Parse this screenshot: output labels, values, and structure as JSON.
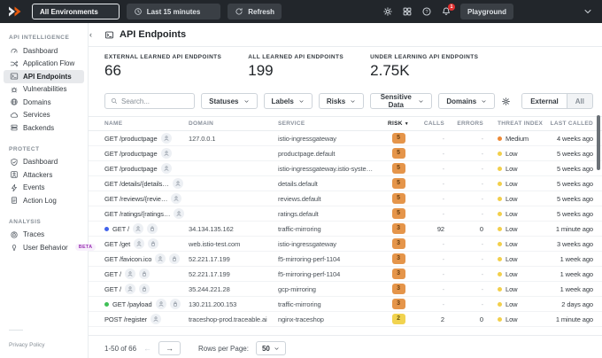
{
  "topbar": {
    "environment": "All Environments",
    "time_range": "Last 15 minutes",
    "refresh": "Refresh",
    "playground": "Playground",
    "notification_count": "1"
  },
  "sidebar": {
    "sections": [
      {
        "label": "API INTELLIGENCE",
        "items": [
          {
            "icon": "gauge",
            "label": "Dashboard"
          },
          {
            "icon": "flow",
            "label": "Application Flow"
          },
          {
            "icon": "terminal",
            "label": "API Endpoints",
            "active": true
          },
          {
            "icon": "bug",
            "label": "Vulnerabilities"
          },
          {
            "icon": "globe",
            "label": "Domains"
          },
          {
            "icon": "cloud",
            "label": "Services"
          },
          {
            "icon": "server",
            "label": "Backends"
          }
        ]
      },
      {
        "label": "PROTECT",
        "items": [
          {
            "icon": "shield",
            "label": "Dashboard"
          },
          {
            "icon": "attacker",
            "label": "Attackers"
          },
          {
            "icon": "bolt",
            "label": "Events"
          },
          {
            "icon": "document",
            "label": "Action Log"
          }
        ]
      },
      {
        "label": "ANALYSIS",
        "items": [
          {
            "icon": "radar",
            "label": "Traces"
          },
          {
            "icon": "lightbulb",
            "label": "User Behavior",
            "badge": "BETA"
          }
        ]
      }
    ],
    "footer": "Privacy Policy"
  },
  "page": {
    "title": "API Endpoints",
    "stats": [
      {
        "label": "EXTERNAL LEARNED API ENDPOINTS",
        "value": "66"
      },
      {
        "label": "ALL LEARNED API ENDPOINTS",
        "value": "199"
      },
      {
        "label": "UNDER LEARNING API ENDPOINTS",
        "value": "2.75K"
      }
    ]
  },
  "filters": {
    "search_placeholder": "Search...",
    "dropdowns": [
      "Statuses",
      "Labels",
      "Risks",
      "Sensitive Data",
      "Domains"
    ],
    "toggle": {
      "options": [
        "External",
        "All"
      ],
      "active": "External"
    }
  },
  "table": {
    "columns": [
      "NAME",
      "DOMAIN",
      "SERVICE",
      "RISK",
      "CALLS",
      "ERRORS",
      "THREAT INDEX",
      "LAST CALLED"
    ],
    "sort_column": "RISK",
    "rows": [
      {
        "name": "GET /productpage",
        "icons": [
          "user"
        ],
        "domain": "127.0.0.1",
        "service": "istio-ingressgateway",
        "risk": "5",
        "risk_color": "orange",
        "calls": "-",
        "errors": "-",
        "threat": "Medium",
        "threat_color": "orange",
        "last_called": "4 weeks ago"
      },
      {
        "name": "GET /productpage",
        "icons": [
          "user"
        ],
        "domain": "",
        "service": "productpage.default",
        "risk": "5",
        "risk_color": "orange",
        "calls": "-",
        "errors": "-",
        "threat": "Low",
        "threat_color": "yellow",
        "last_called": "5 weeks ago"
      },
      {
        "name": "GET /productpage",
        "icons": [
          "user"
        ],
        "domain": "",
        "service": "istio-ingressgateway.istio-syste…",
        "risk": "5",
        "risk_color": "orange",
        "calls": "-",
        "errors": "-",
        "threat": "Low",
        "threat_color": "yellow",
        "last_called": "5 weeks ago"
      },
      {
        "name": "GET /details/{details…",
        "icons": [
          "user"
        ],
        "domain": "",
        "service": "details.default",
        "risk": "5",
        "risk_color": "orange",
        "calls": "-",
        "errors": "-",
        "threat": "Low",
        "threat_color": "yellow",
        "last_called": "5 weeks ago"
      },
      {
        "name": "GET /reviews/{revie…",
        "icons": [
          "user"
        ],
        "domain": "",
        "service": "reviews.default",
        "risk": "5",
        "risk_color": "orange",
        "calls": "-",
        "errors": "-",
        "threat": "Low",
        "threat_color": "yellow",
        "last_called": "5 weeks ago"
      },
      {
        "name": "GET /ratings/{ratings…",
        "icons": [
          "user"
        ],
        "domain": "",
        "service": "ratings.default",
        "risk": "5",
        "risk_color": "orange",
        "calls": "-",
        "errors": "-",
        "threat": "Low",
        "threat_color": "yellow",
        "last_called": "5 weeks ago"
      },
      {
        "dot": "blue",
        "name": "GET /",
        "icons": [
          "user",
          "lock"
        ],
        "domain": "34.134.135.162",
        "service": "traffic-mirroring",
        "risk": "3",
        "risk_color": "orange",
        "calls": "92",
        "errors": "0",
        "threat": "Low",
        "threat_color": "yellow",
        "last_called": "1 minute ago"
      },
      {
        "name": "GET /get",
        "icons": [
          "user",
          "lock"
        ],
        "domain": "web.istio-test.com",
        "service": "istio-ingressgateway",
        "risk": "3",
        "risk_color": "orange",
        "calls": "-",
        "errors": "-",
        "threat": "Low",
        "threat_color": "yellow",
        "last_called": "3 weeks ago"
      },
      {
        "name": "GET /favicon.ico",
        "icons": [
          "user",
          "lock"
        ],
        "domain": "52.221.17.199",
        "service": "f5-mirroring-perf-1104",
        "risk": "3",
        "risk_color": "orange",
        "calls": "-",
        "errors": "-",
        "threat": "Low",
        "threat_color": "yellow",
        "last_called": "1 week ago"
      },
      {
        "name": "GET /",
        "icons": [
          "user",
          "lock"
        ],
        "domain": "52.221.17.199",
        "service": "f5-mirroring-perf-1104",
        "risk": "3",
        "risk_color": "orange",
        "calls": "-",
        "errors": "-",
        "threat": "Low",
        "threat_color": "yellow",
        "last_called": "1 week ago"
      },
      {
        "name": "GET /",
        "icons": [
          "user",
          "lock"
        ],
        "domain": "35.244.221.28",
        "service": "gcp-mirroring",
        "risk": "3",
        "risk_color": "orange",
        "calls": "-",
        "errors": "-",
        "threat": "Low",
        "threat_color": "yellow",
        "last_called": "1 week ago"
      },
      {
        "dot": "green",
        "name": "GET /payload",
        "icons": [
          "user",
          "lock"
        ],
        "domain": "130.211.200.153",
        "service": "traffic-mirroring",
        "risk": "3",
        "risk_color": "orange",
        "calls": "-",
        "errors": "-",
        "threat": "Low",
        "threat_color": "yellow",
        "last_called": "2 days ago"
      },
      {
        "name": "POST /register",
        "icons": [
          "user"
        ],
        "domain": "traceshop-prod.traceable.ai",
        "service": "nginx-traceshop",
        "risk": "2",
        "risk_color": "yellow",
        "calls": "2",
        "errors": "0",
        "threat": "Low",
        "threat_color": "yellow",
        "last_called": "1 minute ago"
      }
    ]
  },
  "pagination": {
    "range": "1-50 of 66",
    "rows_per_page_label": "Rows per Page:",
    "rows_per_page": "50"
  },
  "colors": {
    "topbar_bg": "#22262b",
    "risk_high_badge": "#e5954a",
    "risk_medium_badge": "#f1d34f",
    "threat_medium_dot": "#ed8936",
    "threat_low_dot": "#f2cf4b",
    "new_endpoint_dot_blue": "#4263eb",
    "new_endpoint_dot_green": "#40c057",
    "notification_badge": "#e03131",
    "beta_badge_text": "#9c36b5"
  }
}
